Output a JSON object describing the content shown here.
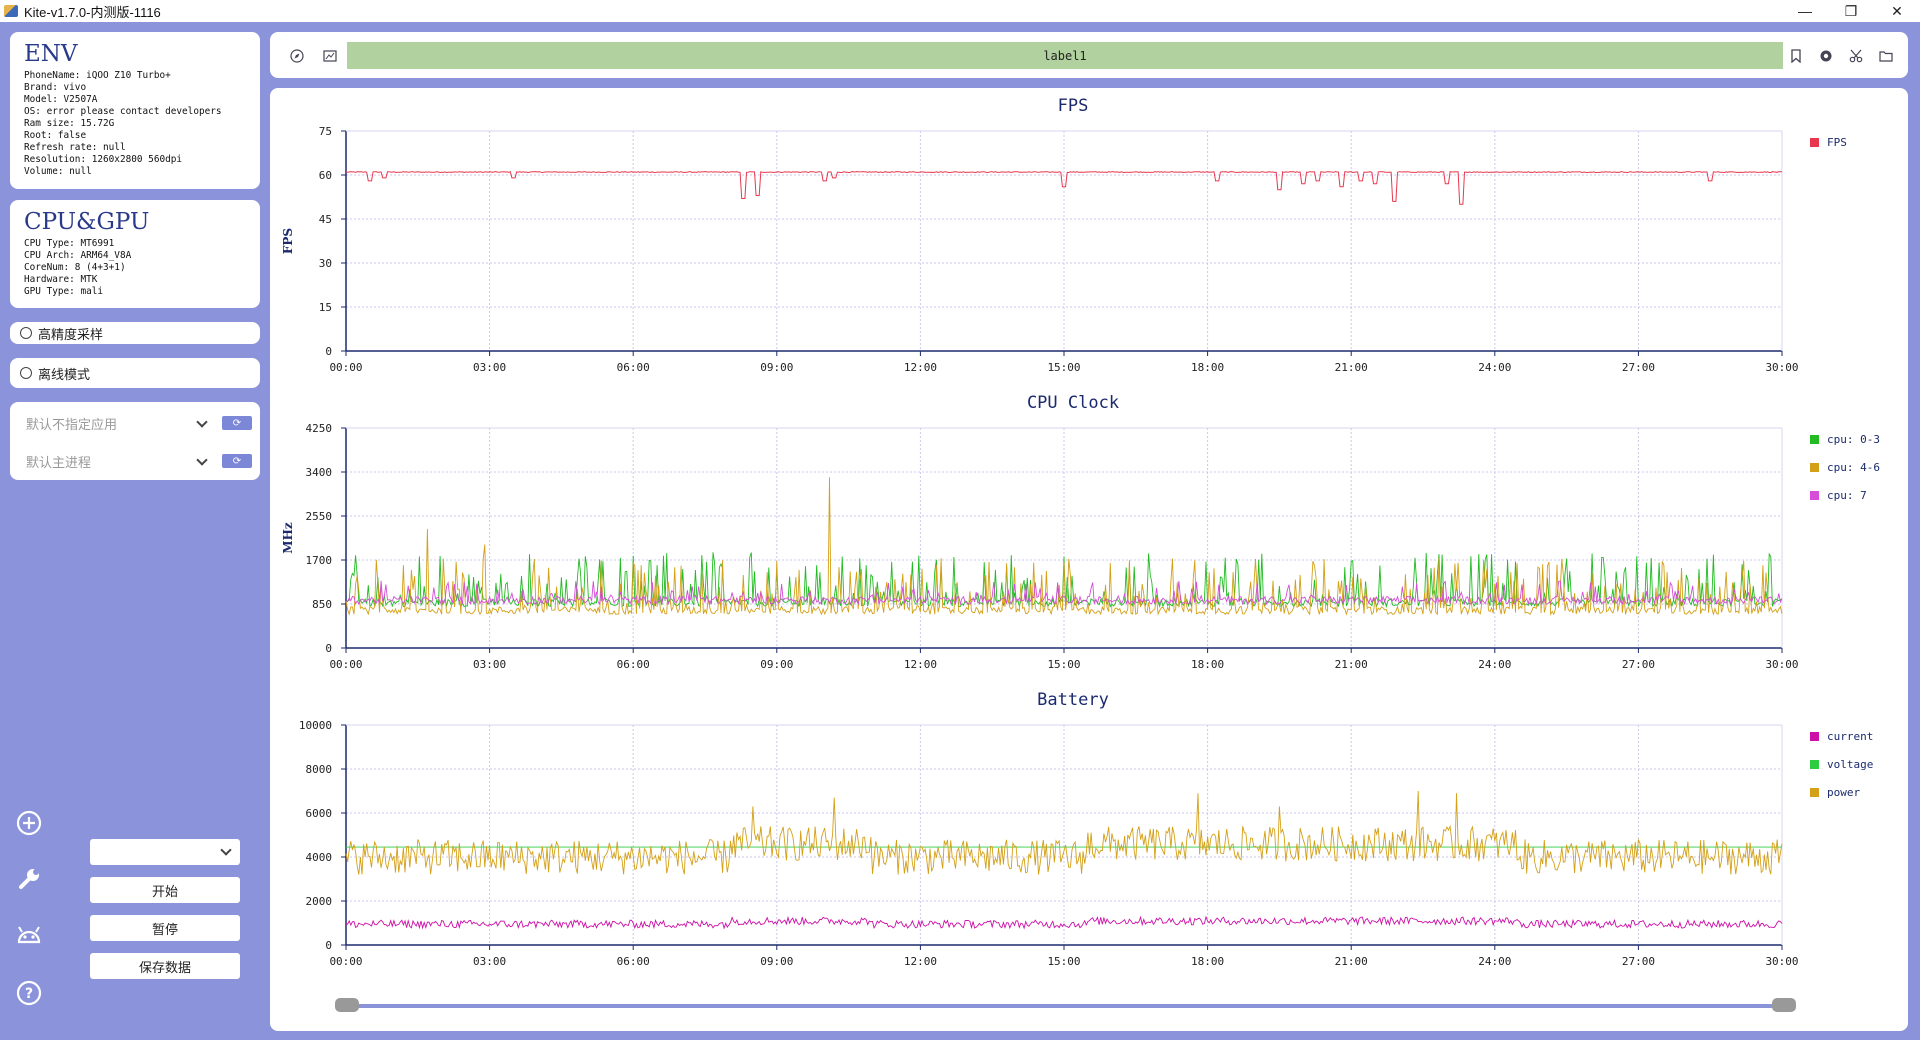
{
  "window": {
    "title": "Kite-v1.7.0-内测版-1116",
    "minimize": "—",
    "restore": "❐",
    "close": "✕"
  },
  "env": {
    "title": "ENV",
    "lines": [
      "PhoneName: iQOO Z10 Turbo+",
      "Brand: vivo",
      "Model: V2507A",
      "OS: error please contact developers",
      "Ram size: 15.72G",
      "Root: false",
      "Refresh rate: null",
      "Resolution: 1260x2800 560dpi",
      "Volume: null"
    ]
  },
  "cpu_gpu": {
    "title": "CPU&GPU",
    "lines": [
      "CPU Type: MT6991",
      "CPU Arch: ARM64_V8A",
      "CoreNum: 8 (4+3+1)",
      "Hardware: MTK",
      "GPU Type: mali"
    ]
  },
  "options": {
    "high_precision": "高精度采样",
    "offline_mode": "离线模式"
  },
  "selectors": {
    "app": "默认不指定应用",
    "process": "默认主进程",
    "refresh_icon": "⟳"
  },
  "controls": {
    "dropdown_value": "",
    "start": "开始",
    "pause": "暂停",
    "save": "保存数据"
  },
  "sidebar_icons": [
    "add-circle-icon",
    "wrench-icon",
    "android-icon",
    "help-icon"
  ],
  "toolbar": {
    "label": "label1",
    "left_icons": [
      "compass-icon",
      "image-icon"
    ],
    "right_icons": [
      "bookmark-icon",
      "camera-icon",
      "scissors-icon",
      "folder-icon"
    ]
  },
  "chart_data": [
    {
      "type": "line",
      "title": "FPS",
      "ylabel": "FPS",
      "ylim": [
        0,
        75
      ],
      "yticks": [
        0,
        15,
        30,
        45,
        60,
        75
      ],
      "xticks": [
        "00:00",
        "03:00",
        "06:00",
        "09:00",
        "12:00",
        "15:00",
        "18:00",
        "21:00",
        "24:00",
        "27:00",
        "30:00"
      ],
      "grid": true,
      "legend": "top-right",
      "series": [
        {
          "name": "FPS",
          "color": "#e8384f",
          "base": 61,
          "noise": 0.3,
          "dips": [
            [
              0.5,
              58
            ],
            [
              0.8,
              59
            ],
            [
              3.5,
              59
            ],
            [
              8.3,
              52
            ],
            [
              8.6,
              53
            ],
            [
              10.0,
              58
            ],
            [
              10.2,
              59
            ],
            [
              15.0,
              56
            ],
            [
              18.2,
              58
            ],
            [
              19.5,
              55
            ],
            [
              20.0,
              57
            ],
            [
              20.3,
              58
            ],
            [
              20.8,
              56
            ],
            [
              21.2,
              58
            ],
            [
              21.5,
              57
            ],
            [
              21.9,
              51
            ],
            [
              23.0,
              57
            ],
            [
              23.3,
              50
            ],
            [
              28.5,
              58
            ]
          ]
        }
      ]
    },
    {
      "type": "line",
      "title": "CPU Clock",
      "ylabel": "MHz",
      "ylim": [
        0,
        4250
      ],
      "yticks": [
        0,
        850,
        1700,
        2550,
        3400,
        4250
      ],
      "xticks": [
        "00:00",
        "03:00",
        "06:00",
        "09:00",
        "12:00",
        "15:00",
        "18:00",
        "21:00",
        "24:00",
        "27:00",
        "30:00"
      ],
      "grid": true,
      "legend": "top-right",
      "series": [
        {
          "name": "cpu: 0-3",
          "color": "#22bb22",
          "lo": 800,
          "hi": 1850,
          "spike_prob": 0.28
        },
        {
          "name": "cpu: 4-6",
          "color": "#d4a017",
          "lo": 650,
          "hi": 1750,
          "spike_prob": 0.3,
          "peaks": [
            [
              1.7,
              2300
            ],
            [
              10.1,
              3300
            ],
            [
              2.9,
              2000
            ]
          ]
        },
        {
          "name": "cpu: 7",
          "color": "#d54dd8",
          "lo": 850,
          "hi": 1300,
          "spike_prob": 0.15
        }
      ]
    },
    {
      "type": "line",
      "title": "Battery",
      "ylabel": "",
      "ylim": [
        0,
        10000
      ],
      "yticks": [
        0,
        2000,
        4000,
        6000,
        8000,
        10000
      ],
      "xticks": [
        "00:00",
        "03:00",
        "06:00",
        "09:00",
        "12:00",
        "15:00",
        "18:00",
        "21:00",
        "24:00",
        "27:00",
        "30:00"
      ],
      "grid": true,
      "legend": "top-right",
      "series": [
        {
          "name": "current",
          "color": "#cc10a8",
          "base": 950,
          "noise": 180
        },
        {
          "name": "voltage",
          "color": "#2ecc40",
          "base": 4450,
          "noise": 0
        },
        {
          "name": "power",
          "color": "#d4a017",
          "base": 4000,
          "noise": 800,
          "peaks": [
            [
              8.5,
              6300
            ],
            [
              10.2,
              6700
            ],
            [
              17.8,
              6900
            ],
            [
              19.5,
              6300
            ],
            [
              22.4,
              7000
            ],
            [
              23.2,
              6900
            ]
          ]
        }
      ]
    }
  ]
}
